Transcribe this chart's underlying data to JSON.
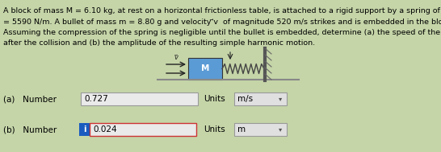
{
  "bg_color": "#c5d5a8",
  "text_color": "#000000",
  "line1": "A block of mass M = 6.10 kg, at rest on a horizontal frictionless table, is attached to a rigid support by a spring of constant k",
  "line2": "= 5590 N/m. A bullet of mass m = 8.80 g and velocity ⃗v  of magnitude 520 m/s strikes and is embedded in the block (the figure).",
  "line3": "Assuming the compression of the spring is negligible until the bullet is embedded, determine (a) the speed of the block immediately",
  "line4": "after the collision and (b) the amplitude of the resulting simple harmonic motion.",
  "label_a": "(a)   Number",
  "value_a": "0.727",
  "units_label_a": "Units",
  "units_a": "m/s",
  "label_b": "(b)   Number",
  "value_b": "0.024",
  "units_label_b": "Units",
  "units_b": "m",
  "input_box_color": "#eaeaea",
  "input_border_color": "#999999",
  "blue_indicator_color": "#1a5bbf",
  "units_box_color": "#e0e0e0",
  "block_color": "#5b9bd5",
  "wall_color": "#8b3a3a",
  "table_color": "#888888",
  "text_fontsize": 6.8,
  "label_fontsize": 7.5,
  "value_fontsize": 7.5,
  "figsize": [
    5.46,
    1.89
  ],
  "dpi": 100
}
